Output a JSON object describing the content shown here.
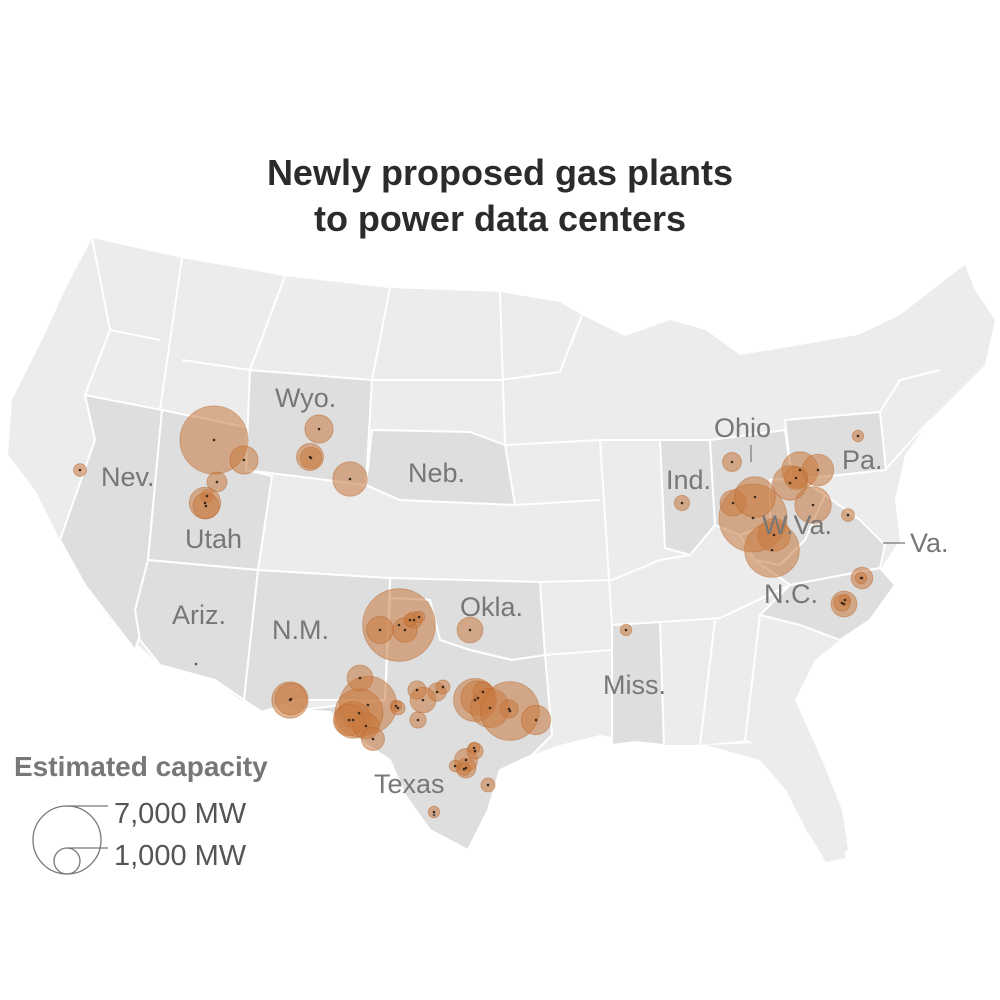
{
  "title_line1": "Newly proposed gas plants",
  "title_line2": "to power data centers",
  "colors": {
    "land": "#ececec",
    "highlight_state": "#dedede",
    "border": "#ffffff",
    "bubble_fill": "#c97a3f",
    "bubble_stroke": "#b8652a",
    "text": "#777777",
    "title": "#2b2b2b"
  },
  "state_labels": {
    "nev": "Nev.",
    "utah": "Utah",
    "ariz": "Ariz.",
    "wyo": "Wyo.",
    "neb": "Neb.",
    "nm": "N.M.",
    "okla": "Okla.",
    "texas": "Texas",
    "miss": "Miss.",
    "ohio": "Ohio",
    "ind": "Ind.",
    "pa": "Pa.",
    "wva": "W.Va.",
    "va": "Va.",
    "nc": "N.C."
  },
  "legend": {
    "title": "Estimated capacity",
    "large_label": "7,000 MW",
    "small_label": "1,000 MW",
    "large_mw": 7000,
    "small_mw": 1000
  },
  "plants_mw": [
    7000,
    1200,
    600,
    250,
    1500,
    1000,
    250,
    1200,
    700,
    1800,
    1100,
    8000,
    1100,
    900,
    400,
    250,
    200,
    2000,
    1500,
    5000,
    3500,
    1000,
    2000,
    1500,
    1000,
    800,
    400,
    200,
    1000,
    500,
    500,
    300,
    1000,
    300,
    2800,
    1800,
    600,
    2300,
    5200,
    500,
    1300,
    600,
    800,
    400,
    200,
    200,
    250,
    300,
    200,
    550,
    350,
    200,
    200,
    200,
    700,
    7000,
    1000,
    2500,
    1600,
    4500,
    2000,
    1500,
    800,
    1800,
    2000,
    250,
    1000,
    400,
    200
  ]
}
